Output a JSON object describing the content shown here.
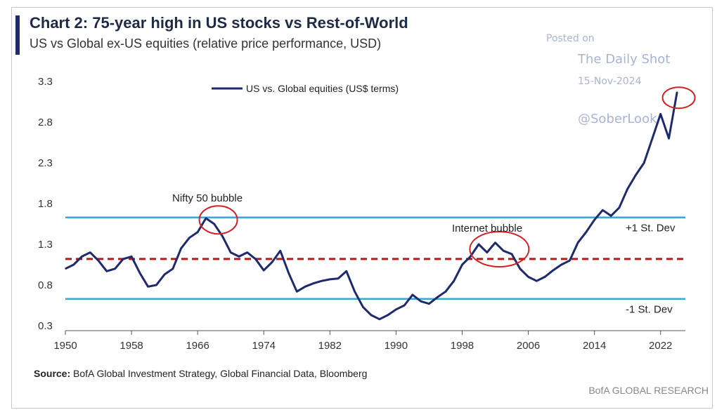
{
  "header": {
    "title": "Chart 2: 75-year high in US stocks vs Rest-of-World",
    "subtitle": "US vs Global ex-US equities (relative price performance, USD)"
  },
  "watermark": {
    "posted": "Posted on",
    "site": "The Daily Shot",
    "date": "15-Nov-2024",
    "handle": "@SoberLook"
  },
  "footer": {
    "source_label": "Source:",
    "source_text": "BofA Global Investment Strategy, Global Financial Data, Bloomberg",
    "brand": "BofA GLOBAL RESEARCH"
  },
  "colors": {
    "accent": "#1f2a6e",
    "line": "#1f2a6e",
    "band": "#3aa6da",
    "mean": "#b31b1b",
    "highlight": "#d42020"
  },
  "chart_data": {
    "type": "line",
    "xlim": [
      1950,
      2025
    ],
    "ylim": [
      0.3,
      3.3
    ],
    "x_ticks": [
      "1950",
      "1958",
      "1966",
      "1974",
      "1982",
      "1990",
      "1998",
      "2006",
      "2014",
      "2022"
    ],
    "y_ticks": [
      "3.3",
      "2.8",
      "2.3",
      "1.8",
      "1.3",
      "0.8",
      "0.3"
    ],
    "series": [
      {
        "name": "US vs. Global equities (US$ terms)",
        "x": [
          1950,
          1951,
          1952,
          1953,
          1954,
          1955,
          1956,
          1957,
          1958,
          1959,
          1960,
          1961,
          1962,
          1963,
          1964,
          1965,
          1966,
          1967,
          1968,
          1969,
          1970,
          1971,
          1972,
          1973,
          1974,
          1975,
          1976,
          1977,
          1978,
          1979,
          1980,
          1981,
          1982,
          1983,
          1984,
          1985,
          1986,
          1987,
          1988,
          1989,
          1990,
          1991,
          1992,
          1993,
          1994,
          1995,
          1996,
          1997,
          1998,
          1999,
          2000,
          2001,
          2002,
          2003,
          2004,
          2005,
          2006,
          2007,
          2008,
          2009,
          2010,
          2011,
          2012,
          2013,
          2014,
          2015,
          2016,
          2017,
          2018,
          2019,
          2020,
          2021,
          2022,
          2023,
          2024
        ],
        "y": [
          1.0,
          1.05,
          1.15,
          1.2,
          1.1,
          0.97,
          1.0,
          1.12,
          1.15,
          0.95,
          0.78,
          0.8,
          0.93,
          1.0,
          1.25,
          1.38,
          1.45,
          1.62,
          1.55,
          1.4,
          1.2,
          1.15,
          1.2,
          1.12,
          0.98,
          1.08,
          1.22,
          0.95,
          0.72,
          0.78,
          0.82,
          0.85,
          0.87,
          0.88,
          0.97,
          0.72,
          0.53,
          0.43,
          0.38,
          0.43,
          0.5,
          0.55,
          0.68,
          0.6,
          0.57,
          0.65,
          0.72,
          0.85,
          1.05,
          1.15,
          1.3,
          1.2,
          1.32,
          1.22,
          1.18,
          1.0,
          0.9,
          0.85,
          0.9,
          0.98,
          1.05,
          1.1,
          1.32,
          1.45,
          1.6,
          1.72,
          1.65,
          1.75,
          1.98,
          2.15,
          2.3,
          2.6,
          2.9,
          2.6,
          3.17
        ]
      }
    ],
    "reference_lines": [
      {
        "value": 1.63,
        "label": "+1 St. Dev"
      },
      {
        "value": 1.12,
        "label": ""
      },
      {
        "value": 0.63,
        "label": "-1 St. Dev"
      }
    ],
    "annotations": [
      {
        "label": "Nifty 50 bubble",
        "x": 1968.5,
        "y": 1.6
      },
      {
        "label": "Internet bubble",
        "x": 2002.5,
        "y": 1.24
      },
      {
        "label": "",
        "x": 2024.2,
        "y": 3.1
      }
    ]
  }
}
